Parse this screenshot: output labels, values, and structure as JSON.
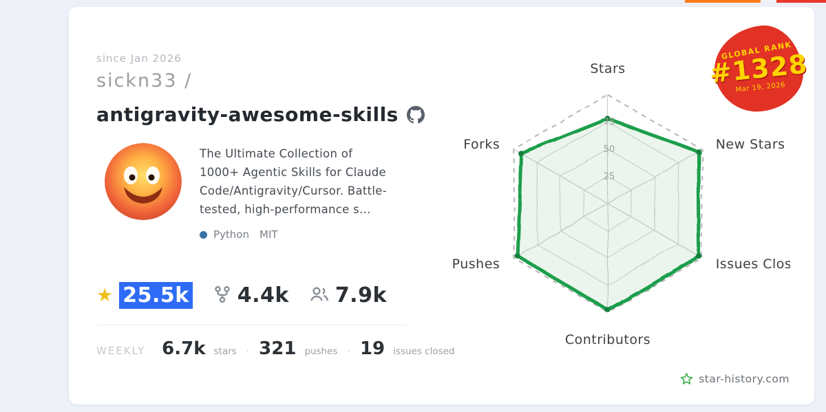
{
  "header": {
    "since": "since Jan 2026",
    "owner": "sickn33 /",
    "repo": "antigravity-awesome-skills"
  },
  "repo": {
    "description": "The Ultimate Collection of 1000+ Agentic Skills for Claude Code/Antigravity/Cursor. Battle-tested, high-performance s…",
    "language": "Python",
    "language_color": "#3572A5",
    "license": "MIT"
  },
  "stats": {
    "stars": "25.5k",
    "forks": "4.4k",
    "contributors": "7.9k"
  },
  "weekly": {
    "label": "WEEKLY",
    "stars_value": "6.7k",
    "stars_label": "stars",
    "pushes_value": "321",
    "pushes_label": "pushes",
    "issues_value": "19",
    "issues_label": "issues closed",
    "separator": "·"
  },
  "badge": {
    "title": "GLOBAL RANK",
    "rank": "#1328",
    "date": "Mar 19, 2026"
  },
  "footer": {
    "site": "star-history.com"
  },
  "icons": {
    "star": "★"
  },
  "colors": {
    "highlight_blue": "#2e6bf6",
    "badge_red": "#e23125",
    "badge_yellow": "#ffd400",
    "radar_green": "#1a9e4b"
  },
  "chart_data": {
    "type": "radar",
    "categories": [
      "Stars",
      "New Stars",
      "Issues Closed",
      "Contributors",
      "Pushes",
      "Forks"
    ],
    "values": [
      78,
      96,
      97,
      98,
      96,
      92
    ],
    "ticks": [
      25,
      50,
      75
    ],
    "max": 100,
    "title": "",
    "legend": "none",
    "grid": "hexagonal, dashed outer ring",
    "stroke": "#1a9e4b",
    "fill": "rgba(40,160,80,0.10)"
  }
}
